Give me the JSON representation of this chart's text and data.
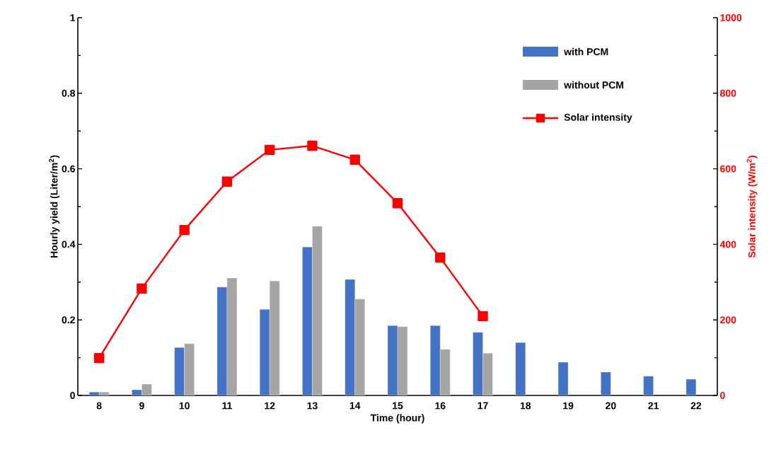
{
  "chart_data": {
    "type": "bar",
    "xlabel": "Time (hour)",
    "ylabel": "Hourly yield (Liter/m$^{2}$)",
    "y2label": "Solar intensity (W/m$^{2}$)",
    "categories": [
      "8",
      "9",
      "10",
      "11",
      "12",
      "13",
      "14",
      "15",
      "16",
      "17",
      "18",
      "19",
      "20",
      "21",
      "22"
    ],
    "series": [
      {
        "name": "with PCM",
        "color": "#4472c4",
        "values": [
          0.009,
          0.015,
          0.127,
          0.287,
          0.228,
          0.393,
          0.307,
          0.185,
          0.185,
          0.167,
          0.14,
          0.088,
          0.062,
          0.051,
          0.043
        ]
      },
      {
        "name": "without PCM",
        "color": "#a5a5a5",
        "values": [
          0.009,
          0.03,
          0.137,
          0.311,
          0.303,
          0.448,
          0.255,
          0.182,
          0.122,
          0.112,
          null,
          null,
          null,
          null,
          null
        ]
      },
      {
        "name": "Solar intensity",
        "type": "line",
        "axis": "y2",
        "marker": "square",
        "color": "#ff0000",
        "values": [
          99,
          283,
          438,
          566,
          650,
          661,
          624,
          509,
          365,
          210,
          null,
          null,
          null,
          null,
          null
        ]
      }
    ],
    "ylim": [
      0,
      1
    ],
    "yticks": [
      0,
      0.2,
      0.4,
      0.6,
      0.8,
      1
    ],
    "y2lim": [
      0,
      1000
    ],
    "y2ticks": [
      0,
      200,
      400,
      600,
      800,
      1000
    ],
    "legend": "top right"
  }
}
